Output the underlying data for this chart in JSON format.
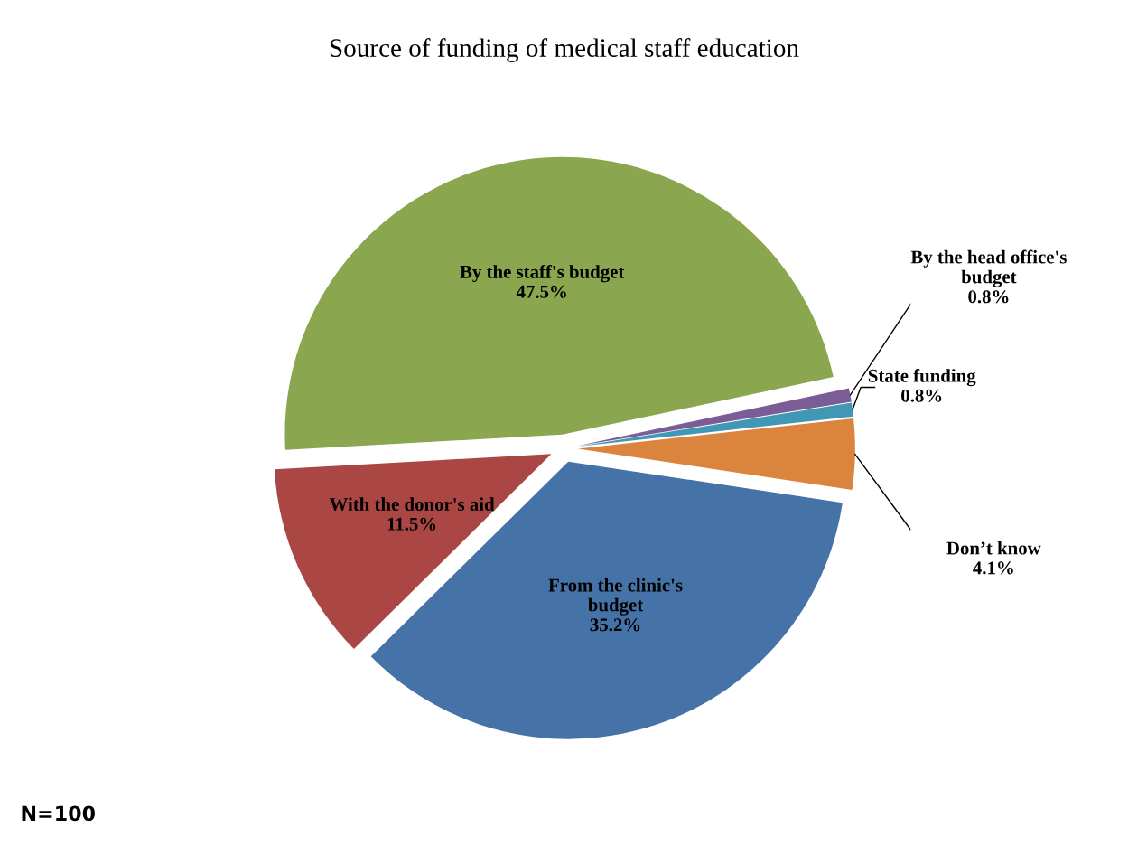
{
  "chart_data": {
    "type": "pie",
    "title": "Source of funding of medical staff education",
    "categories": [
      "By the staff's budget",
      "With the donor's aid",
      "From the clinic's\nbudget",
      "Don’t know",
      "State funding",
      "By the head office's\nbudget"
    ],
    "values": [
      47.5,
      11.5,
      35.2,
      4.1,
      0.8,
      0.8
    ],
    "value_labels": [
      "47.5%",
      "11.5%",
      "35.2%",
      "4.1%",
      "0.8%",
      "0.8%"
    ],
    "colors": [
      "#8aa64e",
      "#aa4643",
      "#4572a7",
      "#db843d",
      "#4198b5",
      "#7b5c97"
    ],
    "annotations": [
      "N=100"
    ]
  }
}
